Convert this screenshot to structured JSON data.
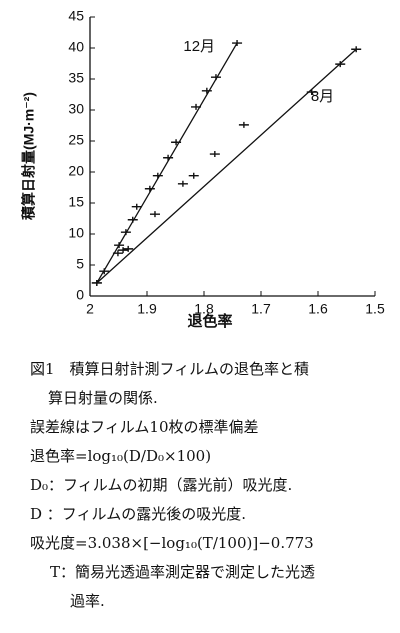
{
  "chart_data": {
    "type": "scatter",
    "xlabel": "退色率",
    "ylabel": "積算日射量(MJ·m⁻²)",
    "xlim": [
      2,
      1.5
    ],
    "xticks": [
      2,
      1.9,
      1.8,
      1.7,
      1.6,
      1.5
    ],
    "ylim": [
      0,
      45
    ],
    "yticks": [
      0,
      5,
      10,
      15,
      20,
      25,
      30,
      35,
      40,
      45
    ],
    "color": "#111111",
    "series": [
      {
        "name": "12月",
        "x": [
          1.988,
          1.975,
          1.949,
          1.937,
          1.925,
          1.918,
          1.895,
          1.881,
          1.863,
          1.849,
          1.814,
          1.795,
          1.779,
          1.742
        ],
        "values": [
          2.1,
          4,
          8.2,
          10.3,
          12.3,
          14.4,
          17.3,
          19.4,
          22.3,
          24.8,
          30.5,
          33.1,
          35.3,
          40.8
        ]
      },
      {
        "name": "8月",
        "x": [
          1.988,
          1.951,
          1.942,
          1.933,
          1.886,
          1.837,
          1.818,
          1.781,
          1.73,
          1.611,
          1.561,
          1.533
        ],
        "values": [
          2.1,
          6.9,
          7.4,
          7.6,
          13.2,
          18.1,
          19.4,
          22.9,
          27.6,
          32.9,
          37.4,
          39.8
        ]
      }
    ]
  },
  "caption": [
    "図1　積算日射計測フィルムの退色率と積",
    "算日射量の関係.",
    "誤差線はフィルム10枚の標準偏差",
    "退色率=log₁₀(D/D₀×100)",
    "D₀：フィルムの初期（露光前）吸光度.",
    "D ：フィルムの露光後の吸光度.",
    "吸光度=3.038×[−log₁₀(T/100)]−0.773",
    "T：簡易光透過率測定器で測定した光透",
    "過率."
  ]
}
